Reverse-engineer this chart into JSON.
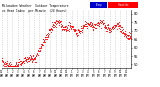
{
  "title1": "Milwaukee Weather  Outdoor Temperature",
  "title2": "vs Heat Index  per Minute  (24 Hours)",
  "plot_bg": "#ffffff",
  "line_color": "#ff0000",
  "legend_temp_color": "#0000cc",
  "legend_heat_color": "#ff0000",
  "ylim": [
    48,
    82
  ],
  "yticks": [
    50,
    55,
    60,
    65,
    70,
    75,
    80
  ],
  "num_points": 1440,
  "seed": 7
}
